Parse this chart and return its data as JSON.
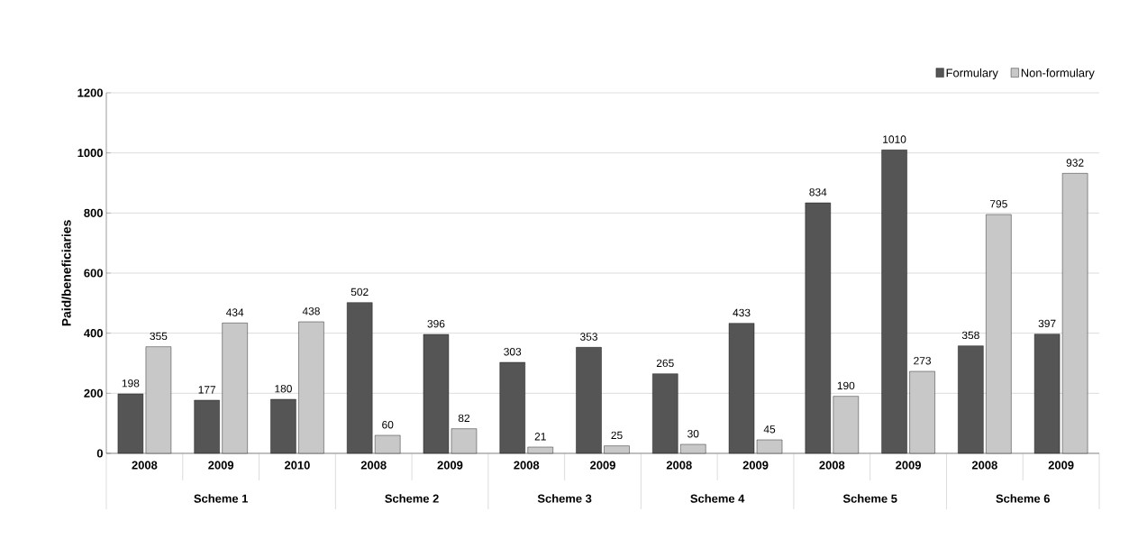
{
  "chart_data": {
    "type": "bar",
    "ylabel": "Paid/beneficiaries",
    "categories": [
      "2008",
      "2009",
      "2010",
      "2008",
      "2009",
      "2008",
      "2009",
      "2008",
      "2009",
      "2008",
      "2009",
      "2008",
      "2009"
    ],
    "series": [
      {
        "name": "Formulary",
        "color": "#555555",
        "values": [
          198,
          177,
          180,
          502,
          396,
          303,
          353,
          265,
          433,
          834,
          1010,
          358,
          397
        ]
      },
      {
        "name": "Non-formulary",
        "color": "#c8c8c8",
        "values": [
          355,
          434,
          438,
          60,
          82,
          21,
          25,
          30,
          45,
          190,
          273,
          795,
          932
        ]
      }
    ],
    "annotations": [
      "Scheme 1",
      "Scheme 2",
      "Scheme 3",
      "Scheme 4",
      "Scheme 5",
      "Scheme 6"
    ],
    "ylim": [
      0,
      1200
    ],
    "yticks": [
      0,
      200,
      400,
      600,
      800,
      1000,
      1200
    ],
    "grid": "y",
    "legend": "top right",
    "data_labels": true
  }
}
